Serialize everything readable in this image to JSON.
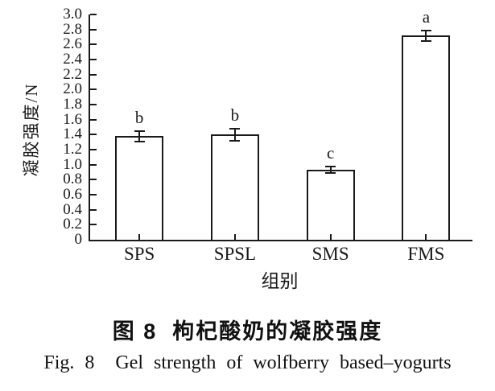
{
  "figure": {
    "caption_zh": "图 8  枸杞酸奶的凝胶强度",
    "caption_en": "Fig. 8  Gel strength of wolfberry based–yogurts"
  },
  "chart_data": {
    "type": "bar",
    "categories": [
      "SPS",
      "SPSL",
      "SMS",
      "FMS"
    ],
    "values": [
      1.38,
      1.4,
      0.93,
      2.72
    ],
    "errors": [
      0.07,
      0.08,
      0.04,
      0.07
    ],
    "sig_letters": [
      "b",
      "b",
      "c",
      "a"
    ],
    "title": "",
    "xlabel": "组别",
    "ylabel": "凝胶强度/N",
    "ylim": [
      0,
      3.0
    ],
    "ytick_step": 0.2,
    "grid": false,
    "legend": null,
    "bar_fill": "#ffffff",
    "line_color": "#1a1a1a"
  }
}
